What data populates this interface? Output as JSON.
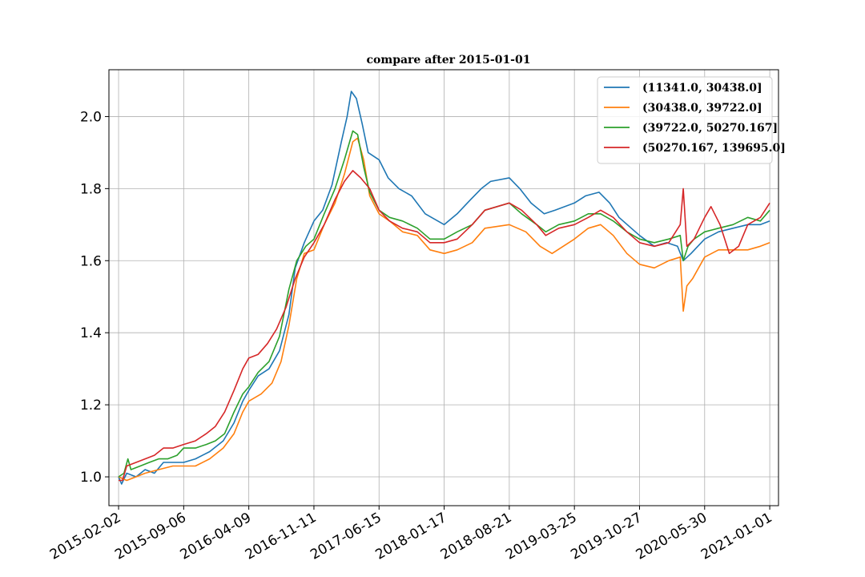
{
  "chart_data": {
    "type": "line",
    "title": "compare after 2015-01-01",
    "xlabel": "",
    "ylabel": "",
    "x_ticks": [
      "2015-02-02",
      "2015-09-06",
      "2016-04-09",
      "2016-11-11",
      "2017-06-15",
      "2018-01-17",
      "2018-08-21",
      "2019-03-25",
      "2019-10-27",
      "2020-05-30",
      "2021-01-01"
    ],
    "y_ticks": [
      "1.0",
      "1.2",
      "1.4",
      "1.6",
      "1.8",
      "2.0"
    ],
    "ylim": [
      0.92,
      2.13
    ],
    "xlim": [
      "2015-01-01",
      "2021-01-30"
    ],
    "grid": true,
    "legend_position": "top-right",
    "series": [
      {
        "name": "(11341.0, 30438.0]",
        "color": "#1f77b4",
        "points": [
          [
            "2015-02-02",
            1.0
          ],
          [
            "2015-02-12",
            0.98
          ],
          [
            "2015-03-01",
            1.01
          ],
          [
            "2015-04-01",
            1.0
          ],
          [
            "2015-05-01",
            1.02
          ],
          [
            "2015-06-01",
            1.01
          ],
          [
            "2015-07-01",
            1.04
          ],
          [
            "2015-08-01",
            1.04
          ],
          [
            "2015-09-06",
            1.04
          ],
          [
            "2015-10-15",
            1.05
          ],
          [
            "2015-12-01",
            1.07
          ],
          [
            "2016-01-15",
            1.1
          ],
          [
            "2016-02-20",
            1.15
          ],
          [
            "2016-03-20",
            1.21
          ],
          [
            "2016-04-09",
            1.24
          ],
          [
            "2016-05-10",
            1.28
          ],
          [
            "2016-06-15",
            1.3
          ],
          [
            "2016-07-20",
            1.35
          ],
          [
            "2016-08-20",
            1.45
          ],
          [
            "2016-09-10",
            1.58
          ],
          [
            "2016-10-10",
            1.65
          ],
          [
            "2016-11-11",
            1.71
          ],
          [
            "2016-12-10",
            1.74
          ],
          [
            "2017-01-10",
            1.81
          ],
          [
            "2017-02-10",
            1.93
          ],
          [
            "2017-03-01",
            2.0
          ],
          [
            "2017-03-15",
            2.07
          ],
          [
            "2017-04-01",
            2.05
          ],
          [
            "2017-04-20",
            1.98
          ],
          [
            "2017-05-10",
            1.9
          ],
          [
            "2017-06-15",
            1.88
          ],
          [
            "2017-07-15",
            1.83
          ],
          [
            "2017-08-20",
            1.8
          ],
          [
            "2017-10-01",
            1.78
          ],
          [
            "2017-11-15",
            1.73
          ],
          [
            "2018-01-17",
            1.7
          ],
          [
            "2018-03-01",
            1.73
          ],
          [
            "2018-04-15",
            1.77
          ],
          [
            "2018-05-20",
            1.8
          ],
          [
            "2018-06-20",
            1.82
          ],
          [
            "2018-08-21",
            1.83
          ],
          [
            "2018-09-25",
            1.8
          ],
          [
            "2018-11-01",
            1.76
          ],
          [
            "2018-12-15",
            1.73
          ],
          [
            "2019-01-20",
            1.74
          ],
          [
            "2019-03-25",
            1.76
          ],
          [
            "2019-05-01",
            1.78
          ],
          [
            "2019-06-15",
            1.79
          ],
          [
            "2019-07-20",
            1.76
          ],
          [
            "2019-08-20",
            1.72
          ],
          [
            "2019-10-27",
            1.67
          ],
          [
            "2019-12-15",
            1.64
          ],
          [
            "2020-01-25",
            1.65
          ],
          [
            "2020-03-01",
            1.64
          ],
          [
            "2020-03-20",
            1.6
          ],
          [
            "2020-04-15",
            1.62
          ],
          [
            "2020-05-30",
            1.66
          ],
          [
            "2020-07-15",
            1.68
          ],
          [
            "2020-09-01",
            1.69
          ],
          [
            "2020-10-20",
            1.7
          ],
          [
            "2020-12-01",
            1.7
          ],
          [
            "2021-01-01",
            1.71
          ]
        ]
      },
      {
        "name": "(30438.0, 39722.0]",
        "color": "#ff7f0e",
        "points": [
          [
            "2015-02-02",
            1.0
          ],
          [
            "2015-03-01",
            0.99
          ],
          [
            "2015-04-01",
            1.0
          ],
          [
            "2015-05-01",
            1.01
          ],
          [
            "2015-06-15",
            1.02
          ],
          [
            "2015-08-01",
            1.03
          ],
          [
            "2015-09-06",
            1.03
          ],
          [
            "2015-10-15",
            1.03
          ],
          [
            "2015-12-01",
            1.05
          ],
          [
            "2016-01-15",
            1.08
          ],
          [
            "2016-02-20",
            1.12
          ],
          [
            "2016-03-20",
            1.18
          ],
          [
            "2016-04-09",
            1.21
          ],
          [
            "2016-05-20",
            1.23
          ],
          [
            "2016-06-25",
            1.26
          ],
          [
            "2016-07-25",
            1.32
          ],
          [
            "2016-08-20",
            1.42
          ],
          [
            "2016-09-15",
            1.55
          ],
          [
            "2016-10-10",
            1.62
          ],
          [
            "2016-11-11",
            1.63
          ],
          [
            "2016-12-15",
            1.7
          ],
          [
            "2017-01-20",
            1.76
          ],
          [
            "2017-02-20",
            1.84
          ],
          [
            "2017-03-20",
            1.93
          ],
          [
            "2017-04-05",
            1.94
          ],
          [
            "2017-04-25",
            1.88
          ],
          [
            "2017-05-15",
            1.78
          ],
          [
            "2017-06-15",
            1.73
          ],
          [
            "2017-07-20",
            1.71
          ],
          [
            "2017-09-01",
            1.68
          ],
          [
            "2017-10-20",
            1.67
          ],
          [
            "2017-12-01",
            1.63
          ],
          [
            "2018-01-17",
            1.62
          ],
          [
            "2018-03-01",
            1.63
          ],
          [
            "2018-04-20",
            1.65
          ],
          [
            "2018-06-01",
            1.69
          ],
          [
            "2018-08-21",
            1.7
          ],
          [
            "2018-10-15",
            1.68
          ],
          [
            "2018-12-01",
            1.64
          ],
          [
            "2019-01-10",
            1.62
          ],
          [
            "2019-03-25",
            1.66
          ],
          [
            "2019-05-10",
            1.69
          ],
          [
            "2019-06-20",
            1.7
          ],
          [
            "2019-08-01",
            1.67
          ],
          [
            "2019-09-15",
            1.62
          ],
          [
            "2019-10-27",
            1.59
          ],
          [
            "2019-12-15",
            1.58
          ],
          [
            "2020-02-01",
            1.6
          ],
          [
            "2020-03-10",
            1.61
          ],
          [
            "2020-03-20",
            1.46
          ],
          [
            "2020-04-01",
            1.53
          ],
          [
            "2020-04-20",
            1.55
          ],
          [
            "2020-05-30",
            1.61
          ],
          [
            "2020-07-15",
            1.63
          ],
          [
            "2020-09-01",
            1.63
          ],
          [
            "2020-10-20",
            1.63
          ],
          [
            "2020-12-01",
            1.64
          ],
          [
            "2021-01-01",
            1.65
          ]
        ]
      },
      {
        "name": "(39722.0, 50270.167]",
        "color": "#2ca02c",
        "points": [
          [
            "2015-02-02",
            1.0
          ],
          [
            "2015-02-20",
            1.01
          ],
          [
            "2015-03-05",
            1.05
          ],
          [
            "2015-03-15",
            1.02
          ],
          [
            "2015-04-15",
            1.03
          ],
          [
            "2015-05-15",
            1.04
          ],
          [
            "2015-06-15",
            1.05
          ],
          [
            "2015-07-15",
            1.05
          ],
          [
            "2015-08-15",
            1.06
          ],
          [
            "2015-09-06",
            1.08
          ],
          [
            "2015-10-15",
            1.08
          ],
          [
            "2015-11-20",
            1.09
          ],
          [
            "2015-12-20",
            1.1
          ],
          [
            "2016-01-20",
            1.12
          ],
          [
            "2016-02-20",
            1.18
          ],
          [
            "2016-03-20",
            1.23
          ],
          [
            "2016-04-09",
            1.25
          ],
          [
            "2016-05-10",
            1.29
          ],
          [
            "2016-06-15",
            1.32
          ],
          [
            "2016-07-20",
            1.39
          ],
          [
            "2016-08-20",
            1.52
          ],
          [
            "2016-09-15",
            1.6
          ],
          [
            "2016-10-15",
            1.64
          ],
          [
            "2016-11-11",
            1.66
          ],
          [
            "2016-12-15",
            1.73
          ],
          [
            "2017-01-20",
            1.8
          ],
          [
            "2017-02-20",
            1.88
          ],
          [
            "2017-03-20",
            1.96
          ],
          [
            "2017-04-05",
            1.95
          ],
          [
            "2017-04-25",
            1.86
          ],
          [
            "2017-05-15",
            1.79
          ],
          [
            "2017-06-15",
            1.74
          ],
          [
            "2017-07-20",
            1.72
          ],
          [
            "2017-09-01",
            1.71
          ],
          [
            "2017-10-20",
            1.69
          ],
          [
            "2017-12-01",
            1.66
          ],
          [
            "2018-01-17",
            1.66
          ],
          [
            "2018-03-01",
            1.68
          ],
          [
            "2018-04-20",
            1.7
          ],
          [
            "2018-06-01",
            1.74
          ],
          [
            "2018-08-21",
            1.76
          ],
          [
            "2018-10-01",
            1.73
          ],
          [
            "2018-11-20",
            1.7
          ],
          [
            "2018-12-20",
            1.68
          ],
          [
            "2019-02-01",
            1.7
          ],
          [
            "2019-03-25",
            1.71
          ],
          [
            "2019-05-10",
            1.73
          ],
          [
            "2019-06-20",
            1.73
          ],
          [
            "2019-08-01",
            1.71
          ],
          [
            "2019-09-15",
            1.68
          ],
          [
            "2019-10-27",
            1.66
          ],
          [
            "2019-12-15",
            1.65
          ],
          [
            "2020-02-01",
            1.66
          ],
          [
            "2020-03-10",
            1.67
          ],
          [
            "2020-03-20",
            1.6
          ],
          [
            "2020-04-05",
            1.64
          ],
          [
            "2020-04-25",
            1.66
          ],
          [
            "2020-05-30",
            1.68
          ],
          [
            "2020-07-15",
            1.69
          ],
          [
            "2020-09-01",
            1.7
          ],
          [
            "2020-10-20",
            1.72
          ],
          [
            "2020-12-01",
            1.71
          ],
          [
            "2021-01-01",
            1.74
          ]
        ]
      },
      {
        "name": "(50270.167, 139695.0]",
        "color": "#d62728",
        "points": [
          [
            "2015-02-02",
            0.99
          ],
          [
            "2015-02-15",
            0.99
          ],
          [
            "2015-03-01",
            1.03
          ],
          [
            "2015-04-01",
            1.04
          ],
          [
            "2015-05-01",
            1.05
          ],
          [
            "2015-06-01",
            1.06
          ],
          [
            "2015-07-01",
            1.08
          ],
          [
            "2015-08-01",
            1.08
          ],
          [
            "2015-09-06",
            1.09
          ],
          [
            "2015-10-15",
            1.1
          ],
          [
            "2015-11-20",
            1.12
          ],
          [
            "2015-12-20",
            1.14
          ],
          [
            "2016-01-20",
            1.18
          ],
          [
            "2016-02-20",
            1.24
          ],
          [
            "2016-03-20",
            1.3
          ],
          [
            "2016-04-09",
            1.33
          ],
          [
            "2016-05-10",
            1.34
          ],
          [
            "2016-06-10",
            1.37
          ],
          [
            "2016-07-10",
            1.41
          ],
          [
            "2016-08-10",
            1.47
          ],
          [
            "2016-09-10",
            1.55
          ],
          [
            "2016-10-10",
            1.61
          ],
          [
            "2016-11-11",
            1.65
          ],
          [
            "2016-12-15",
            1.7
          ],
          [
            "2017-01-20",
            1.77
          ],
          [
            "2017-02-20",
            1.82
          ],
          [
            "2017-03-20",
            1.85
          ],
          [
            "2017-04-15",
            1.83
          ],
          [
            "2017-05-15",
            1.8
          ],
          [
            "2017-06-15",
            1.74
          ],
          [
            "2017-07-20",
            1.71
          ],
          [
            "2017-09-01",
            1.69
          ],
          [
            "2017-10-20",
            1.68
          ],
          [
            "2017-12-01",
            1.65
          ],
          [
            "2018-01-17",
            1.65
          ],
          [
            "2018-03-01",
            1.66
          ],
          [
            "2018-04-20",
            1.7
          ],
          [
            "2018-06-01",
            1.74
          ],
          [
            "2018-08-21",
            1.76
          ],
          [
            "2018-10-01",
            1.74
          ],
          [
            "2018-11-20",
            1.7
          ],
          [
            "2018-12-20",
            1.67
          ],
          [
            "2019-02-01",
            1.69
          ],
          [
            "2019-03-25",
            1.7
          ],
          [
            "2019-05-10",
            1.72
          ],
          [
            "2019-06-20",
            1.74
          ],
          [
            "2019-08-01",
            1.72
          ],
          [
            "2019-09-15",
            1.68
          ],
          [
            "2019-10-27",
            1.65
          ],
          [
            "2019-12-15",
            1.64
          ],
          [
            "2020-02-01",
            1.65
          ],
          [
            "2020-03-10",
            1.7
          ],
          [
            "2020-03-20",
            1.8
          ],
          [
            "2020-04-01",
            1.64
          ],
          [
            "2020-04-25",
            1.66
          ],
          [
            "2020-05-30",
            1.72
          ],
          [
            "2020-06-20",
            1.75
          ],
          [
            "2020-07-20",
            1.7
          ],
          [
            "2020-08-20",
            1.62
          ],
          [
            "2020-09-20",
            1.64
          ],
          [
            "2020-10-20",
            1.7
          ],
          [
            "2020-12-01",
            1.72
          ],
          [
            "2021-01-01",
            1.76
          ]
        ]
      }
    ]
  }
}
